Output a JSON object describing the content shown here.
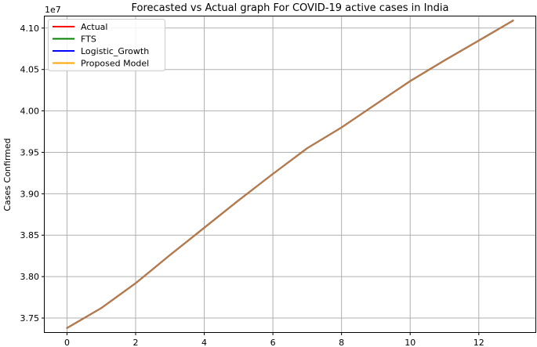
{
  "chart_data": {
    "type": "line",
    "title": "Forecasted vs Actual graph For COVID-19 active cases in India",
    "xlabel": "",
    "ylabel": "Cases Confirmed",
    "y_offset_label": "1e7",
    "xlim": [
      -0.65,
      13.65
    ],
    "ylim": [
      3.733,
      4.114
    ],
    "x_ticks": [
      0,
      2,
      4,
      6,
      8,
      10,
      12
    ],
    "y_ticks": [
      3.75,
      3.8,
      3.85,
      3.9,
      3.95,
      4.0,
      4.05,
      4.1
    ],
    "y_tick_labels": [
      "3.75",
      "3.80",
      "3.85",
      "3.90",
      "3.95",
      "4.00",
      "4.05",
      "4.10"
    ],
    "grid": true,
    "legend_position": "top-left",
    "x": [
      0,
      1,
      2,
      3,
      4,
      5,
      6,
      7,
      8,
      9,
      10,
      11,
      12,
      13
    ],
    "series": [
      {
        "name": "Actual",
        "color": "#ff0000",
        "values": [
          3.738,
          3.762,
          3.792,
          3.826,
          3.859,
          3.892,
          3.924,
          3.955,
          3.98,
          4.008,
          4.036,
          4.061,
          4.085,
          4.109
        ]
      },
      {
        "name": "FTS",
        "color": "#008000",
        "values": [
          3.738,
          3.762,
          3.792,
          3.826,
          3.859,
          3.892,
          3.924,
          3.955,
          3.98,
          4.008,
          4.036,
          4.061,
          4.085,
          4.109
        ]
      },
      {
        "name": "Logistic_Growth",
        "color": "#0000ff",
        "values": [
          3.738,
          3.762,
          3.792,
          3.826,
          3.859,
          3.892,
          3.924,
          3.955,
          3.98,
          4.008,
          4.036,
          4.061,
          4.085,
          4.109
        ]
      },
      {
        "name": "Proposed Model",
        "color": "#ffa500",
        "values": [
          3.738,
          3.762,
          3.792,
          3.826,
          3.859,
          3.892,
          3.924,
          3.955,
          3.98,
          4.008,
          4.036,
          4.061,
          4.085,
          4.109
        ]
      }
    ]
  }
}
